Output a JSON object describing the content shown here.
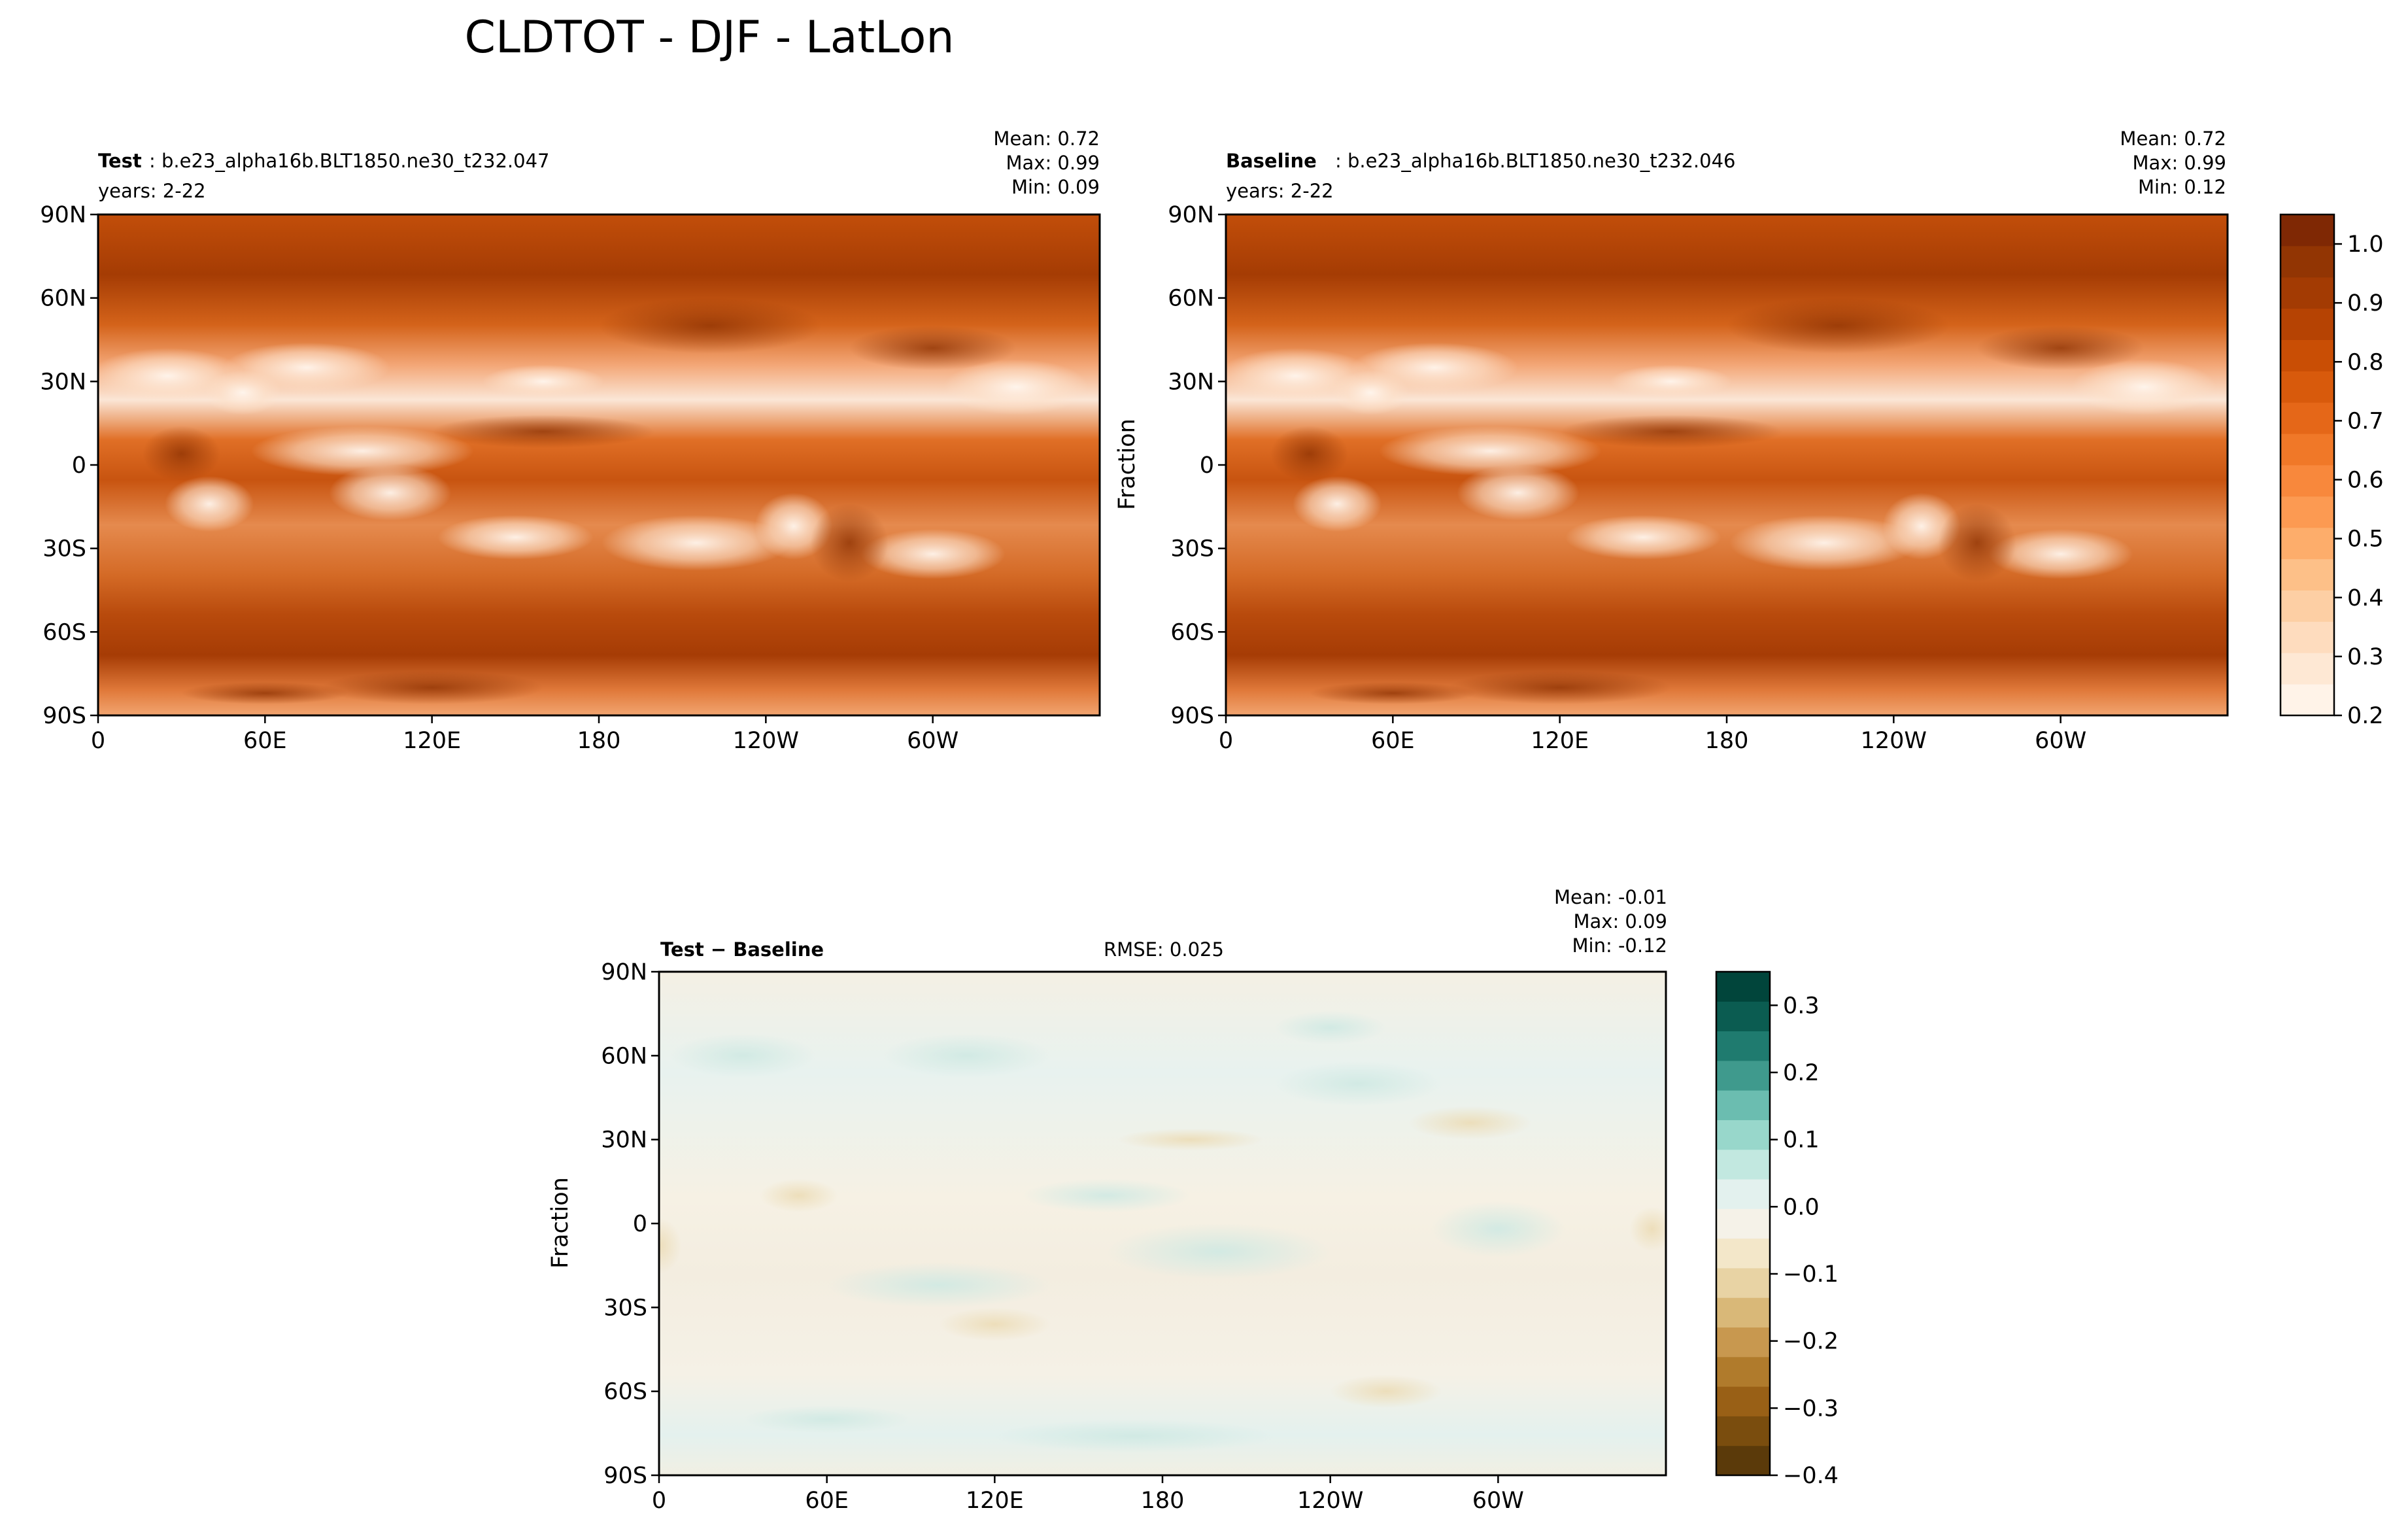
{
  "figure": {
    "title": "CLDTOT - DJF - LatLon",
    "colors": {
      "land_outline": "#000000",
      "background": "#ffffff"
    }
  },
  "chart_data": [
    {
      "type": "heatmap",
      "panel": "test",
      "label_bold": "Test",
      "label_text": ": b.e23_alpha16b.BLT1850.ne30_t232.047",
      "years": "years: 2-22",
      "stats": {
        "mean": "Mean:  0.72",
        "max": "Max:  0.99",
        "min": "Min:  0.09"
      },
      "xticks": [
        "0",
        "60E",
        "120E",
        "180",
        "120W",
        "60W"
      ],
      "yticks": [
        "90N",
        "60N",
        "30N",
        "0",
        "30S",
        "60S",
        "90S"
      ],
      "xlim": [
        0,
        360
      ],
      "ylim": [
        -90,
        90
      ],
      "colormap": "Oranges"
    },
    {
      "type": "heatmap",
      "panel": "baseline",
      "label_bold": "Baseline",
      "label_text": ": b.e23_alpha16b.BLT1850.ne30_t232.046",
      "years": "years: 2-22",
      "stats": {
        "mean": "Mean:  0.72",
        "max": "Max:  0.99",
        "min": "Min:  0.12"
      },
      "xticks": [
        "0",
        "60E",
        "120E",
        "180",
        "120W",
        "60W"
      ],
      "yticks": [
        "90N",
        "60N",
        "30N",
        "0",
        "30S",
        "60S",
        "90S"
      ],
      "xlim": [
        0,
        360
      ],
      "ylim": [
        -90,
        90
      ],
      "ylabel": "Fraction",
      "colormap": "Oranges",
      "colorbar": {
        "ticks": [
          "1.0",
          "0.9",
          "0.8",
          "0.7",
          "0.6",
          "0.5",
          "0.4",
          "0.3",
          "0.2"
        ],
        "range": [
          0.2,
          1.05
        ],
        "colors": [
          "#fff3e8",
          "#fee8d4",
          "#fedcbe",
          "#fdcfa4",
          "#fdc088",
          "#fdad6b",
          "#fc9a52",
          "#f8883c",
          "#f07828",
          "#e56718",
          "#d85a0c",
          "#c94e05",
          "#b64303",
          "#a33b03",
          "#923503",
          "#7f2804"
        ]
      }
    },
    {
      "type": "heatmap",
      "panel": "difference",
      "label_bold": "Test − Baseline",
      "rmse": "RMSE: 0.025",
      "stats": {
        "mean": "Mean: -0.01",
        "max": "Max:  0.09",
        "min": "Min: -0.12"
      },
      "xticks": [
        "0",
        "60E",
        "120E",
        "180",
        "120W",
        "60W"
      ],
      "yticks": [
        "90N",
        "60N",
        "30N",
        "0",
        "30S",
        "60S",
        "90S"
      ],
      "xlim": [
        0,
        360
      ],
      "ylim": [
        -90,
        90
      ],
      "ylabel": "Fraction",
      "colormap": "BrBG",
      "colorbar": {
        "ticks": [
          "0.3",
          "0.2",
          "0.1",
          "0.0",
          "−0.1",
          "−0.2",
          "−0.3",
          "−0.4"
        ],
        "range": [
          -0.4,
          0.35
        ],
        "colors": [
          "#5b3a0a",
          "#7a4d0e",
          "#996016",
          "#b07b2c",
          "#c8984f",
          "#d9b878",
          "#e8d3a4",
          "#f3e7c9",
          "#f5f2e8",
          "#e3f1ee",
          "#c2e8e0",
          "#98d7cb",
          "#6bbdb0",
          "#3f9a8d",
          "#1f7b6f",
          "#0b5c51",
          "#01453b"
        ]
      }
    }
  ]
}
